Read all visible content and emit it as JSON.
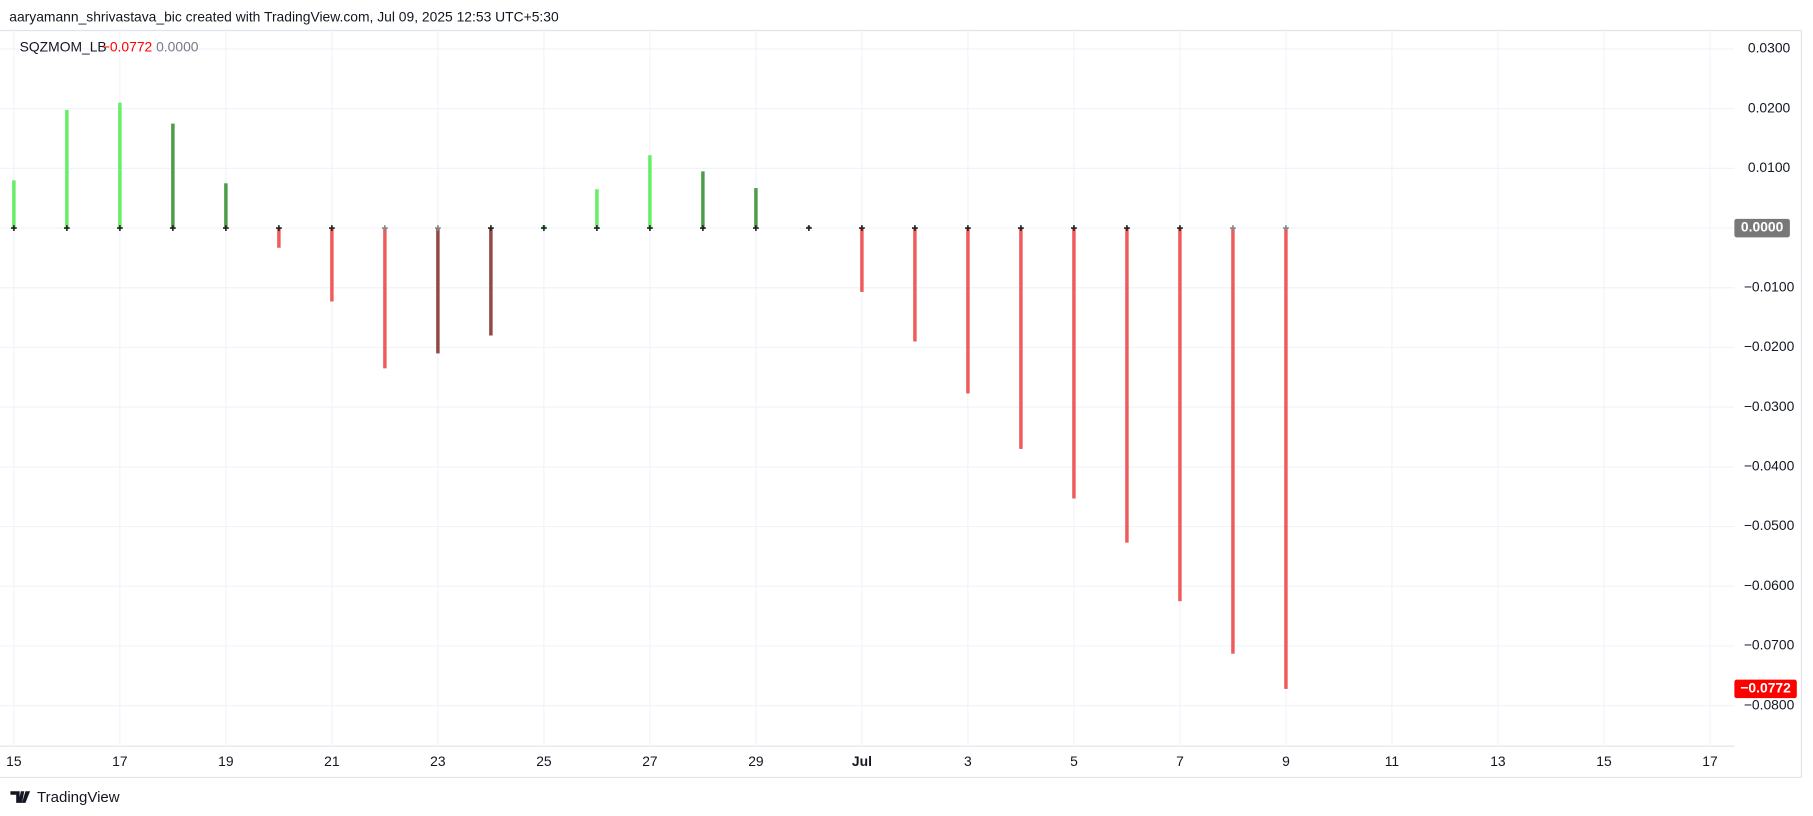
{
  "header": {
    "caption": "aaryamann_shrivastava_bic created with TradingView.com, Jul 09, 2025 12:53 UTC+5:30"
  },
  "footer": {
    "brand": "TradingView"
  },
  "chart_data": {
    "type": "bar",
    "indicator": "SQZMOM_LB",
    "legend_values": [
      {
        "value": -0.0772,
        "label": "−0.0772"
      },
      {
        "value": 0,
        "label": "0.0000"
      }
    ],
    "categories": [
      "15",
      null,
      "17",
      null,
      "19",
      null,
      "21",
      null,
      "23",
      null,
      "25",
      null,
      "27",
      null,
      "29",
      null,
      "Jul",
      null,
      "3",
      null,
      "5",
      null,
      "7",
      null,
      "9",
      null,
      "11",
      null,
      "13",
      null,
      "15",
      null,
      "17"
    ],
    "series": [
      {
        "name": "SQZMOM_LB",
        "values": [
          0.008,
          0.0198,
          0.021,
          0.0175,
          0.0075,
          -0.0033,
          -0.0123,
          -0.0235,
          -0.021,
          -0.018,
          0.0005,
          0.0065,
          0.0122,
          0.0095,
          0.0067,
          0.0003,
          -0.0107,
          -0.019,
          -0.0277,
          -0.037,
          -0.0453,
          -0.0527,
          -0.0625,
          -0.0713,
          -0.0772,
          null,
          null,
          null,
          null,
          null,
          null,
          null,
          null
        ],
        "colors": [
          "#66ee66",
          "#66ee66",
          "#66ee66",
          "#4c9c4c",
          "#4c9c4c",
          "#ef5b5b",
          "#ef5b5b",
          "#ef5b5b",
          "#8f4a44",
          "#8f4a44",
          "#66ee66",
          "#66ee66",
          "#66ee66",
          "#4c9c4c",
          "#4c9c4c",
          "#4c9c4c",
          "#ef5b5b",
          "#ef5b5b",
          "#ef5b5b",
          "#ef5b5b",
          "#ef5b5b",
          "#ef5b5b",
          "#ef5b5b",
          "#ef5b5b",
          "#ef5b5b",
          null,
          null,
          null,
          null,
          null,
          null,
          null,
          null
        ]
      },
      {
        "values": [
          0,
          0,
          0,
          0,
          0,
          0,
          0,
          0,
          0,
          0,
          0,
          0,
          0,
          0,
          0,
          0,
          0,
          0,
          0,
          0,
          0,
          0,
          0,
          0,
          0,
          null,
          null,
          null,
          null,
          null,
          null,
          null,
          null
        ],
        "colors": [
          "#222222",
          "#222222",
          "#222222",
          "#222222",
          "#222222",
          "#222222",
          "#222222",
          "#888888",
          "#888888",
          "#222222",
          "#222222",
          "#222222",
          "#222222",
          "#222222",
          "#222222",
          "#222222",
          "#222222",
          "#222222",
          "#222222",
          "#222222",
          "#222222",
          "#222222",
          "#222222",
          "#888888",
          "#888888",
          null,
          null,
          null,
          null,
          null,
          null,
          null,
          null
        ]
      }
    ],
    "ylim": [
      -0.0868,
      0.0331
    ],
    "yticks": [
      {
        "value": 0.03,
        "label": "0.0300"
      },
      {
        "value": 0.02,
        "label": "0.0200"
      },
      {
        "value": 0.01,
        "label": "0.0100"
      },
      {
        "value": 0,
        "label": "0.0000"
      },
      {
        "value": -0.01,
        "label": "−0.0100"
      },
      {
        "value": -0.02,
        "label": "−0.0200"
      },
      {
        "value": -0.03,
        "label": "−0.0300"
      },
      {
        "value": -0.04,
        "label": "−0.0400"
      },
      {
        "value": -0.05,
        "label": "−0.0500"
      },
      {
        "value": -0.06,
        "label": "−0.0600"
      },
      {
        "value": -0.07,
        "label": "−0.0700"
      },
      {
        "value": -0.08,
        "label": "−0.0800"
      }
    ],
    "grid": true,
    "last_value_color": "#ff0000",
    "zero_badge_color": "#787878"
  }
}
